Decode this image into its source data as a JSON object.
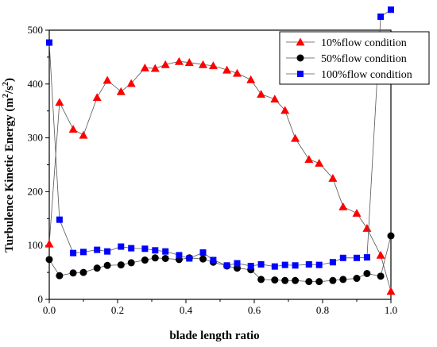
{
  "chart_data": {
    "type": "line",
    "xlabel": "blade length ratio",
    "ylabel_main": "Turbulence Kinetic Energy (m",
    "ylabel_sup1": "2",
    "ylabel_mid": "/s",
    "ylabel_sup2": "2",
    "ylabel_end": ")",
    "xlim": [
      0.0,
      1.0
    ],
    "ylim": [
      0,
      500
    ],
    "x_ticks": [
      0.0,
      0.2,
      0.4,
      0.6,
      0.8,
      1.0
    ],
    "x_tick_labels": [
      "0.0",
      "0.2",
      "0.4",
      "0.6",
      "0.8",
      "1.0"
    ],
    "y_ticks": [
      0,
      100,
      200,
      300,
      400,
      500
    ],
    "y_tick_labels": [
      "0",
      "100",
      "200",
      "300",
      "400",
      "500"
    ],
    "grid": false,
    "legend_position": "top-right",
    "series": [
      {
        "name": "10%flow condition",
        "marker": "triangle",
        "color": "#ff0000",
        "x": [
          0.0,
          0.03,
          0.07,
          0.1,
          0.14,
          0.17,
          0.21,
          0.24,
          0.28,
          0.31,
          0.34,
          0.38,
          0.41,
          0.45,
          0.48,
          0.52,
          0.55,
          0.59,
          0.62,
          0.66,
          0.69,
          0.72,
          0.76,
          0.79,
          0.83,
          0.86,
          0.9,
          0.93,
          0.97,
          1.0
        ],
        "y": [
          103,
          366,
          316,
          305,
          375,
          407,
          386,
          401,
          430,
          429,
          436,
          442,
          440,
          436,
          434,
          426,
          420,
          408,
          381,
          372,
          351,
          299,
          260,
          253,
          225,
          172,
          160,
          132,
          82,
          15
        ]
      },
      {
        "name": "50%flow condition",
        "marker": "circle",
        "color": "#000000",
        "x": [
          0.0,
          0.03,
          0.07,
          0.1,
          0.14,
          0.17,
          0.21,
          0.24,
          0.28,
          0.31,
          0.34,
          0.38,
          0.41,
          0.45,
          0.48,
          0.52,
          0.55,
          0.59,
          0.62,
          0.66,
          0.69,
          0.72,
          0.76,
          0.79,
          0.83,
          0.86,
          0.9,
          0.93,
          0.97,
          1.0
        ],
        "y": [
          74,
          44,
          49,
          50,
          58,
          63,
          64,
          68,
          73,
          77,
          76,
          74,
          77,
          75,
          69,
          62,
          58,
          55,
          37,
          36,
          35,
          35,
          33,
          33,
          35,
          37,
          39,
          48,
          43,
          118
        ]
      },
      {
        "name": "100%flow condition",
        "marker": "square",
        "color": "#0000ff",
        "x": [
          0.0,
          0.03,
          0.07,
          0.1,
          0.14,
          0.17,
          0.21,
          0.24,
          0.28,
          0.31,
          0.34,
          0.38,
          0.41,
          0.45,
          0.48,
          0.52,
          0.55,
          0.59,
          0.62,
          0.66,
          0.69,
          0.72,
          0.76,
          0.79,
          0.83,
          0.86,
          0.9,
          0.93,
          0.97,
          1.0
        ],
        "y": [
          477,
          148,
          86,
          88,
          92,
          89,
          98,
          95,
          94,
          91,
          89,
          82,
          76,
          87,
          73,
          63,
          67,
          62,
          65,
          61,
          64,
          63,
          65,
          64,
          69,
          77,
          77,
          78,
          525,
          538
        ]
      }
    ]
  }
}
